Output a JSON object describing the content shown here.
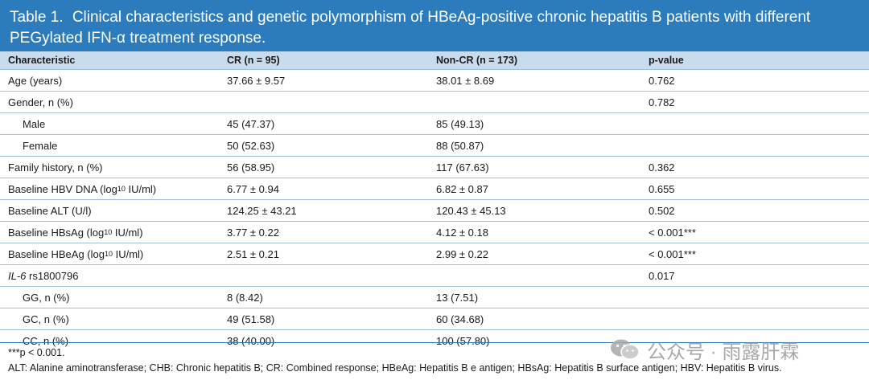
{
  "title": {
    "number": "Table 1.",
    "text": "Clinical characteristics and genetic polymorphism of HBeAg-positive chronic hepatitis B patients with different PEGylated IFN-α treatment response."
  },
  "columns": [
    "Characteristic",
    "CR (n = 95)",
    "Non-CR (n = 173)",
    "p-value"
  ],
  "rows": [
    {
      "label": "Age (years)",
      "cr": "37.66 ± 9.57",
      "noncr": "38.01 ± 8.69",
      "p": "0.762"
    },
    {
      "label": "Gender, n (%)",
      "cr": "",
      "noncr": "",
      "p": "0.782"
    },
    {
      "label": "Male",
      "cr": "45 (47.37)",
      "noncr": "85 (49.13)",
      "p": ""
    },
    {
      "label": "Female",
      "cr": "50 (52.63)",
      "noncr": "88 (50.87)",
      "p": ""
    },
    {
      "label": "Family history, n (%)",
      "cr": "56 (58.95)",
      "noncr": "117 (67.63)",
      "p": "0.362"
    },
    {
      "label_pre": "Baseline HBV DNA (log",
      "label_sub": "10",
      "label_post": " IU/ml)",
      "cr": "6.77 ± 0.94",
      "noncr": "6.82 ± 0.87",
      "p": "0.655"
    },
    {
      "label": "Baseline ALT (U/l)",
      "cr": "124.25 ± 43.21",
      "noncr": "120.43 ± 45.13",
      "p": "0.502"
    },
    {
      "label_pre": "Baseline HBsAg (log",
      "label_sub": "10",
      "label_post": " IU/ml)",
      "cr": "3.77 ± 0.22",
      "noncr": "4.12 ± 0.18",
      "p": "< 0.001***"
    },
    {
      "label_pre": "Baseline HBeAg (log",
      "label_sub": "10",
      "label_post": " IU/ml)",
      "cr": "2.51 ± 0.21",
      "noncr": "2.99 ± 0.22",
      "p": "< 0.001***"
    },
    {
      "label_it": "IL-6",
      "label_post": " rs1800796",
      "cr": "",
      "noncr": "",
      "p": "0.017"
    },
    {
      "label": "GG, n (%)",
      "cr": "8 (8.42)",
      "noncr": "13 (7.51)",
      "p": ""
    },
    {
      "label": "GC, n (%)",
      "cr": "49 (51.58)",
      "noncr": "60 (34.68)",
      "p": ""
    },
    {
      "label": "CC, n (%)",
      "cr": "38 (40.00)",
      "noncr": "100 (57.80)",
      "p": ""
    }
  ],
  "footnotes": {
    "significance": "***p < 0.001.",
    "abbreviations": "ALT: Alanine aminotransferase; CHB: Chronic hepatitis B; CR: Combined response; HBeAg: Hepatitis B e antigen; HBsAg: Hepatitis B surface antigen; HBV: Hepatitis B virus."
  },
  "watermark": {
    "icon": "wechat-icon",
    "text": "公众号 · 雨露肝霖"
  },
  "colors": {
    "title_bg": "#2b7bbd",
    "header_bg": "#c9dcee",
    "rule": "#9fbfdc"
  }
}
